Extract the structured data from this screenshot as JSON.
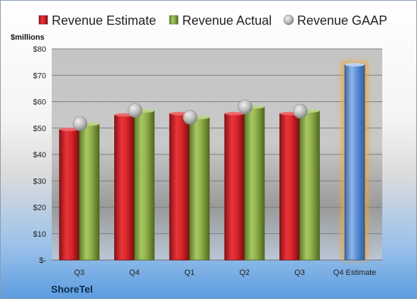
{
  "chart_data": {
    "type": "bar",
    "unit_label": "$millions",
    "brand": "ShoreTel",
    "categories": [
      "Q3",
      "Q4",
      "Q1",
      "Q2",
      "Q3",
      "Q4 Estimate"
    ],
    "series": [
      {
        "name": "Revenue Estimate",
        "kind": "bar",
        "color": "#d9262b",
        "values": [
          49.5,
          55,
          55.5,
          55.5,
          55.5,
          null
        ]
      },
      {
        "name": "Revenue Actual",
        "kind": "bar",
        "color": "#8fb04a",
        "values": [
          51.5,
          56.5,
          54,
          58,
          56.5,
          null
        ]
      },
      {
        "name": "Revenue GAAP",
        "kind": "marker",
        "color": "#b8b8b8",
        "values": [
          51.7,
          56.7,
          54.1,
          58,
          56.4,
          null
        ]
      }
    ],
    "projection": {
      "category": "Q4 Estimate",
      "value": 74,
      "color": "#5b8fd8",
      "glow": "#f3a533"
    },
    "y_ticks": [
      "$-",
      "$10",
      "$20",
      "$30",
      "$40",
      "$50",
      "$60",
      "$70",
      "$80"
    ],
    "ylim": [
      0,
      80
    ],
    "grid": true,
    "legend": "top"
  }
}
